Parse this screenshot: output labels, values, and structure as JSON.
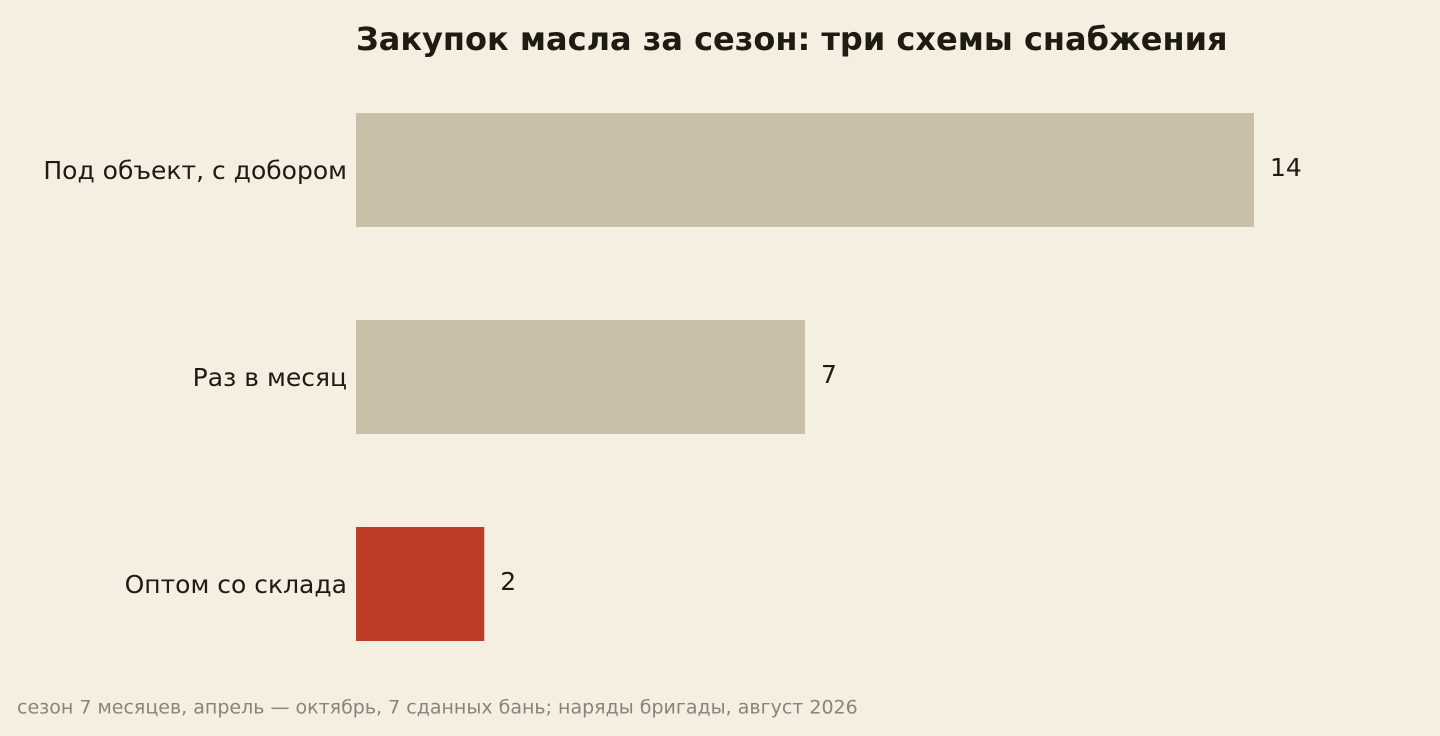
{
  "chart_data": {
    "type": "bar",
    "orientation": "horizontal",
    "title": "Закупок масла за сезон: три схемы снабжения",
    "categories": [
      "Под объект, с добором",
      "Раз в месяц",
      "Оптом со склада"
    ],
    "values": [
      14,
      7,
      2
    ],
    "colors": [
      "#c9bfa8",
      "#c9bfa8",
      "#bd3c27"
    ],
    "note": "сезон 7 месяцев, апрель — октябрь, 7 сданных бань; наряды бригады, август 2026"
  }
}
